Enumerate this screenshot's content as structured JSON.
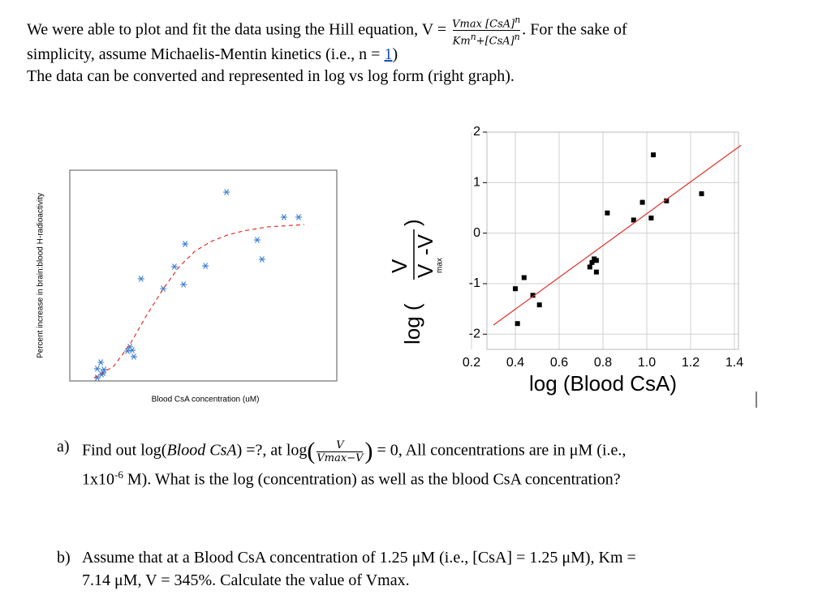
{
  "document": {
    "intro": {
      "hill_lead": "We were able to plot and fit the data using the Hill equation, V =",
      "hill_numerator": "Vmax [CsA]",
      "hill_numerator_exp": "n",
      "hill_denominator": [
        "Km",
        "n",
        "+[CsA]",
        "n"
      ],
      "hill_tail": ". For the sake of",
      "line2": "simplicity, assume Michaelis-Mentin kinetics (i.e., n = ",
      "line2_value": "1",
      "line2_end": ")",
      "line3": "The data can be converted and represented in log vs log form (right graph)."
    },
    "questions": [
      {
        "label": "a)",
        "line1": [
          "Find out log(",
          "Blood CsA",
          ") =?, at log",
          "(",
          "V",
          "Vmax−V",
          ")",
          "= 0, All concentrations are in μM (i.e.,"
        ],
        "line2": [
          "1x10",
          "-6",
          " M).  What is the log (concentration) as well as the blood CsA concentration?"
        ]
      },
      {
        "label": "b)",
        "line1": "Assume that at a Blood CsA concentration of 1.25 μM (i.e., [CsA] = 1.25 μM),  Km =",
        "line2": "7.14 μM, V = 345%. Calculate the value of Vmax."
      }
    ]
  },
  "chart_data": [
    {
      "type": "scatter",
      "xlabel": "Blood CsA concentration (uM)",
      "ylabel": "Percent increase in brain:blood H-radioactivity",
      "xlim": [
        0,
        100
      ],
      "ylim": [
        0,
        100
      ],
      "series": [
        {
          "color": "#3a7fd0",
          "marker": "asterisk",
          "x": [
            58.7,
            80.2,
            85.7,
            43.2,
            70.2,
            72.0,
            39.2,
            50.8,
            26.7,
            42.6,
            35.0,
            22.5,
            23.4,
            21.6,
            24.0,
            11.6,
            10.3,
            12.5,
            10.3,
            12.8,
            11.9
          ],
          "values": [
            89.6,
            77.7,
            77.7,
            65.0,
            66.9,
            57.7,
            54.2,
            54.6,
            48.5,
            45.8,
            43.8,
            16.2,
            14.6,
            14.2,
            11.5,
            8.8,
            5.8,
            3.8,
            1.5,
            5.4,
            3.1
          ]
        },
        {
          "color": "#e0302a",
          "line": "dashed",
          "x": [
            9.1,
            16.4,
            22.5,
            28.6,
            34.7,
            40.7,
            46.8,
            52.9,
            59.0,
            65.0,
            74.2,
            87.8
          ],
          "values": [
            1.5,
            6.9,
            17.3,
            30.8,
            43.1,
            53.8,
            61.5,
            66.2,
            69.2,
            71.2,
            73.1,
            74.2
          ]
        }
      ]
    },
    {
      "type": "scatter",
      "xlabel": "log (Blood CsA)",
      "ylabel": {
        "prefix": "log (",
        "numerator": "V",
        "denominator": "V",
        "subscript": "max",
        "denominator_tail": "-V",
        "suffix": ")"
      },
      "xlim": [
        0.2,
        1.4
      ],
      "ylim": [
        -2.3,
        2
      ],
      "xticks": [
        0.2,
        0.4,
        0.6,
        0.8,
        {
          "value": 1,
          "label": "1.0"
        },
        1.2,
        1.4
      ],
      "yticks": [
        -2,
        -1,
        0,
        1,
        2
      ],
      "grid": true,
      "series": [
        {
          "color": "#000000",
          "marker": "square",
          "x": [
            1.03,
            1.25,
            1.09,
            0.98,
            0.82,
            1.02,
            0.94,
            0.76,
            0.77,
            0.75,
            0.74,
            0.77,
            0.44,
            0.4,
            0.48,
            0.51,
            0.41
          ],
          "values": [
            1.55,
            0.78,
            0.64,
            0.61,
            0.4,
            0.3,
            0.26,
            -0.51,
            -0.54,
            -0.58,
            -0.67,
            -0.77,
            -0.88,
            -1.1,
            -1.23,
            -1.42,
            -1.79
          ]
        },
        {
          "color": "#e0302a",
          "line": "solid",
          "x": [
            0.3,
            1.43
          ],
          "values": [
            -1.82,
            1.74
          ]
        }
      ]
    }
  ]
}
